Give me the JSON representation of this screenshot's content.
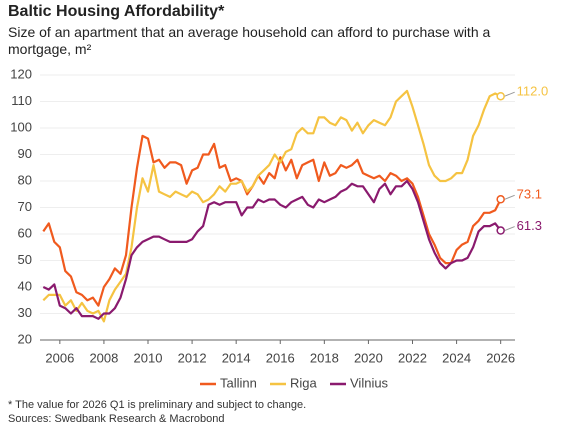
{
  "chart_data": {
    "type": "line",
    "title": "Baltic Housing Affordability*",
    "subtitle": "Size of an apartment that an average household can afford to purchase with a mortgage, m²",
    "notes": [
      "* The value for 2026 Q1 is preliminary and subject to change.",
      "Sources: Swedbank Research & Macrobond"
    ],
    "x": [
      2005.25,
      2005.5,
      2005.75,
      2006,
      2006.25,
      2006.5,
      2006.75,
      2007,
      2007.25,
      2007.5,
      2007.75,
      2008,
      2008.25,
      2008.5,
      2008.75,
      2009,
      2009.25,
      2009.5,
      2009.75,
      2010,
      2010.25,
      2010.5,
      2010.75,
      2011,
      2011.25,
      2011.5,
      2011.75,
      2012,
      2012.25,
      2012.5,
      2012.75,
      2013,
      2013.25,
      2013.5,
      2013.75,
      2014,
      2014.25,
      2014.5,
      2014.75,
      2015,
      2015.25,
      2015.5,
      2015.75,
      2016,
      2016.25,
      2016.5,
      2016.75,
      2017,
      2017.25,
      2017.5,
      2017.75,
      2018,
      2018.25,
      2018.5,
      2018.75,
      2019,
      2019.25,
      2019.5,
      2019.75,
      2020,
      2020.25,
      2020.5,
      2020.75,
      2021,
      2021.25,
      2021.5,
      2021.75,
      2022,
      2022.25,
      2022.5,
      2022.75,
      2023,
      2023.25,
      2023.5,
      2023.75,
      2024,
      2024.25,
      2024.5,
      2024.75,
      2025,
      2025.25,
      2025.5,
      2025.75,
      2026
    ],
    "series": [
      {
        "name": "Tallinn",
        "color": "#f05a1e",
        "values": [
          61,
          64,
          57,
          55,
          46,
          44,
          38,
          37,
          35,
          36,
          33,
          40,
          43,
          47,
          45,
          52,
          70,
          85,
          97,
          96,
          87,
          88,
          85,
          87,
          87,
          86,
          79,
          84,
          85,
          90,
          90,
          94,
          85,
          86,
          80,
          81,
          80,
          75,
          78,
          82,
          79,
          83,
          81,
          89,
          84,
          88,
          81,
          86,
          87,
          88,
          80,
          87,
          82,
          83,
          86,
          85,
          86,
          88,
          83,
          82,
          81,
          82,
          80,
          83,
          82,
          80,
          81,
          79,
          74,
          67,
          60,
          56,
          51,
          49,
          49,
          54,
          56,
          57,
          63,
          65,
          68,
          68,
          69,
          73.1
        ],
        "value_labels": [
          null,
          null,
          null,
          null,
          null,
          null,
          null,
          null,
          null,
          null,
          null,
          null,
          null,
          null,
          null,
          null,
          null,
          null,
          null,
          null,
          null,
          null,
          null,
          null,
          null,
          null,
          null,
          null,
          null,
          null,
          null,
          null,
          null,
          null,
          null,
          null,
          null,
          null,
          null,
          null,
          null,
          null,
          null,
          null,
          null,
          null,
          null,
          null,
          null,
          null,
          null,
          null,
          null,
          null,
          null,
          null,
          null,
          null,
          null,
          null,
          null,
          null,
          null,
          null,
          null,
          null,
          null,
          null,
          null,
          null,
          null,
          null,
          null,
          null,
          null,
          null,
          null,
          null,
          null,
          null,
          null,
          null,
          null,
          "73.1"
        ]
      },
      {
        "name": "Riga",
        "color": "#f5c342",
        "values": [
          35,
          37,
          37,
          37,
          33,
          35,
          31,
          34,
          31,
          30,
          31,
          27,
          35,
          39,
          42,
          45,
          55,
          70,
          81,
          76,
          86,
          76,
          75,
          74,
          76,
          75,
          74,
          76,
          75,
          72,
          73,
          75,
          78,
          76,
          79,
          79,
          80,
          76,
          78,
          82,
          84,
          86,
          90,
          87,
          91,
          92,
          98,
          100,
          98,
          98,
          104,
          104,
          102,
          101,
          104,
          103,
          99,
          102,
          98,
          101,
          103,
          102,
          101,
          104,
          110,
          112,
          114,
          108,
          101,
          94,
          86,
          82,
          80,
          80,
          81,
          83,
          83,
          88,
          97,
          101,
          107,
          112,
          113,
          112
        ],
        "value_labels": [
          null,
          null,
          null,
          null,
          null,
          null,
          null,
          null,
          null,
          null,
          null,
          null,
          null,
          null,
          null,
          null,
          null,
          null,
          null,
          null,
          null,
          null,
          null,
          null,
          null,
          null,
          null,
          null,
          null,
          null,
          null,
          null,
          null,
          null,
          null,
          null,
          null,
          null,
          null,
          null,
          null,
          null,
          null,
          null,
          null,
          null,
          null,
          null,
          null,
          null,
          null,
          null,
          null,
          null,
          null,
          null,
          null,
          null,
          null,
          null,
          null,
          null,
          null,
          null,
          null,
          null,
          null,
          null,
          null,
          null,
          null,
          null,
          null,
          null,
          null,
          null,
          null,
          null,
          null,
          null,
          null,
          null,
          null,
          "112.0"
        ]
      },
      {
        "name": "Vilnius",
        "color": "#8a1a6e",
        "values": [
          40,
          39,
          41,
          33,
          32,
          30,
          32,
          29,
          29,
          29,
          28,
          30,
          30,
          32,
          36,
          43,
          52,
          55,
          57,
          58,
          59,
          59,
          58,
          57,
          57,
          57,
          57,
          58,
          61,
          63,
          71,
          72,
          71,
          72,
          72,
          72,
          67,
          70,
          70,
          73,
          72,
          73,
          73,
          71,
          70,
          72,
          73,
          74,
          71,
          70,
          73,
          72,
          73,
          74,
          76,
          77,
          79,
          78,
          78,
          75,
          72,
          77,
          79,
          75,
          78,
          78,
          80,
          77,
          72,
          65,
          58,
          53,
          49,
          47,
          49,
          50,
          50,
          51,
          55,
          61,
          63,
          63,
          64,
          61.3
        ],
        "value_labels": [
          null,
          null,
          null,
          null,
          null,
          null,
          null,
          null,
          null,
          null,
          null,
          null,
          null,
          null,
          null,
          null,
          null,
          null,
          null,
          null,
          null,
          null,
          null,
          null,
          null,
          null,
          null,
          null,
          null,
          null,
          null,
          null,
          null,
          null,
          null,
          null,
          null,
          null,
          null,
          null,
          null,
          null,
          null,
          null,
          null,
          null,
          null,
          null,
          null,
          null,
          null,
          null,
          null,
          null,
          null,
          null,
          null,
          null,
          null,
          null,
          null,
          null,
          null,
          null,
          null,
          null,
          null,
          null,
          null,
          null,
          null,
          null,
          null,
          null,
          null,
          null,
          null,
          null,
          null,
          null,
          null,
          null,
          null,
          "61.3"
        ]
      }
    ],
    "xlim": [
      2005.1,
      2026.65
    ],
    "xticks": [
      2006,
      2008,
      2010,
      2012,
      2014,
      2016,
      2018,
      2020,
      2022,
      2024,
      2026
    ],
    "ylim": [
      20,
      120
    ],
    "yticks": [
      20,
      30,
      40,
      50,
      60,
      70,
      80,
      90,
      100,
      110,
      120
    ],
    "grid": true,
    "legend": "bottom"
  }
}
